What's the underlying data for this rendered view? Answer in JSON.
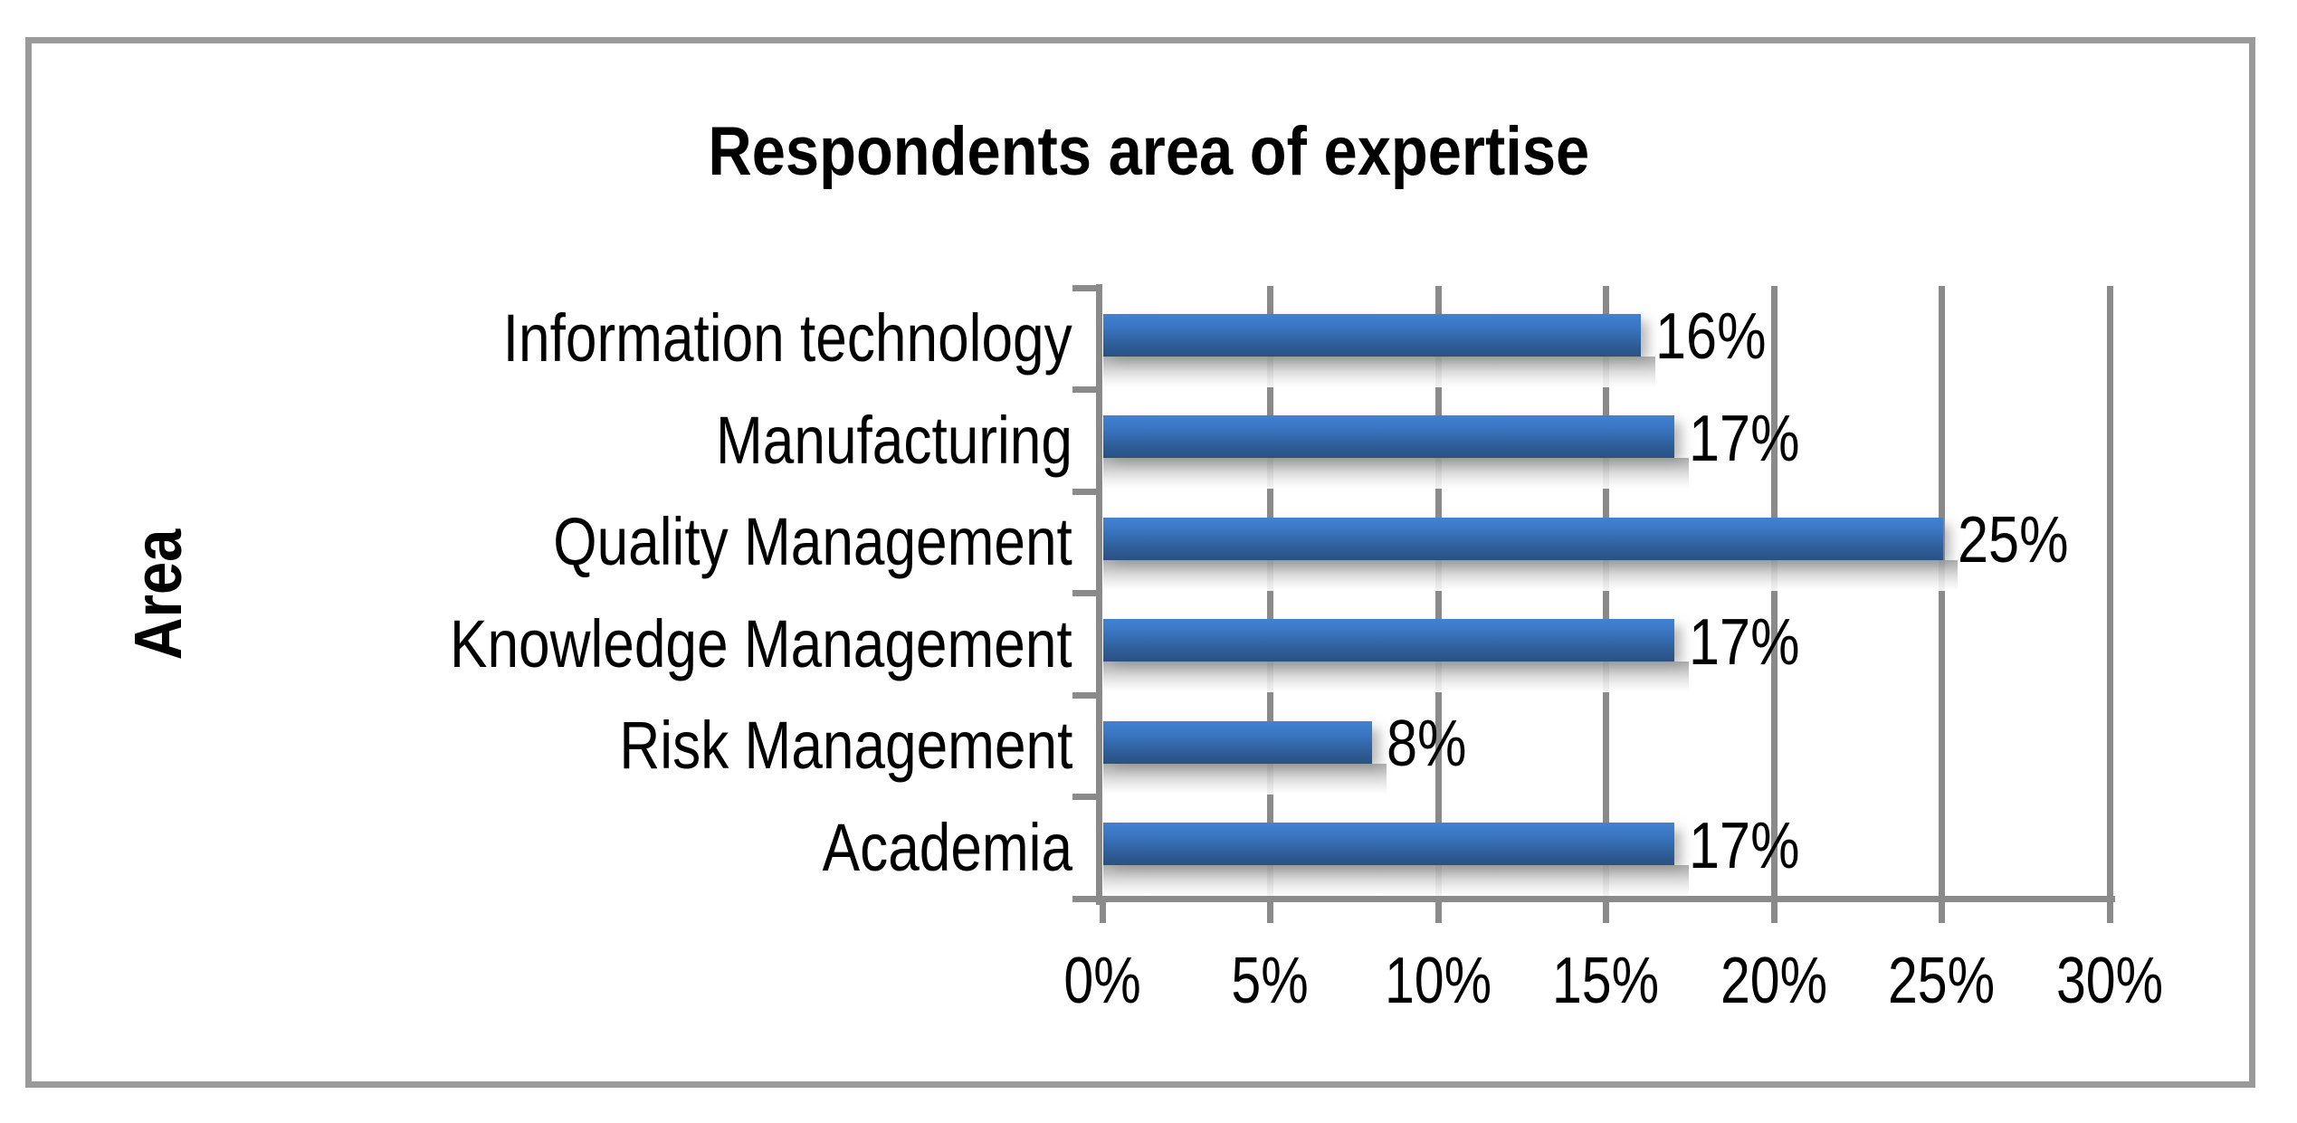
{
  "chart_data": {
    "type": "bar",
    "orientation": "horizontal",
    "title": "Respondents area of expertise",
    "ylabel": "Area",
    "xlabel": "",
    "categories": [
      "Information technology",
      "Manufacturing",
      "Quality Management",
      "Knowledge Management",
      "Risk Management",
      "Academia"
    ],
    "values": [
      16,
      17,
      25,
      17,
      8,
      17
    ],
    "value_labels": [
      "16%",
      "17%",
      "25%",
      "17%",
      "8%",
      "17%"
    ],
    "x_ticks": [
      0,
      5,
      10,
      15,
      20,
      25,
      30
    ],
    "x_tick_labels": [
      "0%",
      "5%",
      "10%",
      "15%",
      "20%",
      "25%",
      "30%"
    ],
    "xlim": [
      0,
      30
    ],
    "grid": true,
    "legend": false,
    "bar_color_top": "#4282d2",
    "bar_color_bottom": "#2a5182",
    "axis_color": "#8a8a8a",
    "frame_color": "#9a9a9a",
    "text_color": "#000000",
    "background": "#ffffff"
  }
}
